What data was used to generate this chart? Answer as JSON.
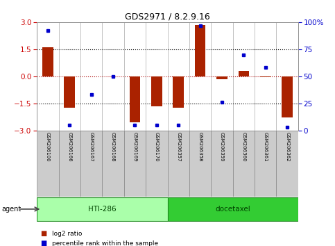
{
  "title": "GDS2971 / 8.2.9.16",
  "samples": [
    "GSM206100",
    "GSM206166",
    "GSM206167",
    "GSM206168",
    "GSM206169",
    "GSM206170",
    "GSM206357",
    "GSM206358",
    "GSM206359",
    "GSM206360",
    "GSM206361",
    "GSM206362"
  ],
  "log2_ratio": [
    1.62,
    -1.75,
    0.0,
    0.0,
    -2.55,
    -1.65,
    -1.75,
    2.85,
    -0.18,
    0.3,
    -0.05,
    -2.3
  ],
  "pct_rank": [
    92,
    5,
    33,
    50,
    5,
    5,
    5,
    97,
    26,
    70,
    58,
    3
  ],
  "groups": [
    {
      "label": "HTI-286",
      "start": 0,
      "end": 5,
      "color": "#AAFFAA"
    },
    {
      "label": "docetaxel",
      "start": 6,
      "end": 11,
      "color": "#33CC33"
    }
  ],
  "ylim": [
    -3,
    3
  ],
  "yticks_left": [
    -3,
    -1.5,
    0,
    1.5,
    3
  ],
  "yticks_right": [
    0,
    25,
    50,
    75,
    100
  ],
  "bar_color": "#AA2200",
  "dot_color": "#0000CC",
  "zero_line_color": "#AA0000",
  "hline_color": "#000000",
  "bg_color": "#FFFFFF",
  "plot_bg": "#FFFFFF",
  "tick_color_left": "#CC0000",
  "tick_color_right": "#0000CC",
  "sample_box_color": "#CCCCCC",
  "sample_box_edge": "#888888",
  "agent_label": "agent",
  "legend_bar_label": "log2 ratio",
  "legend_dot_label": "percentile rank within the sample",
  "bar_width": 0.5
}
